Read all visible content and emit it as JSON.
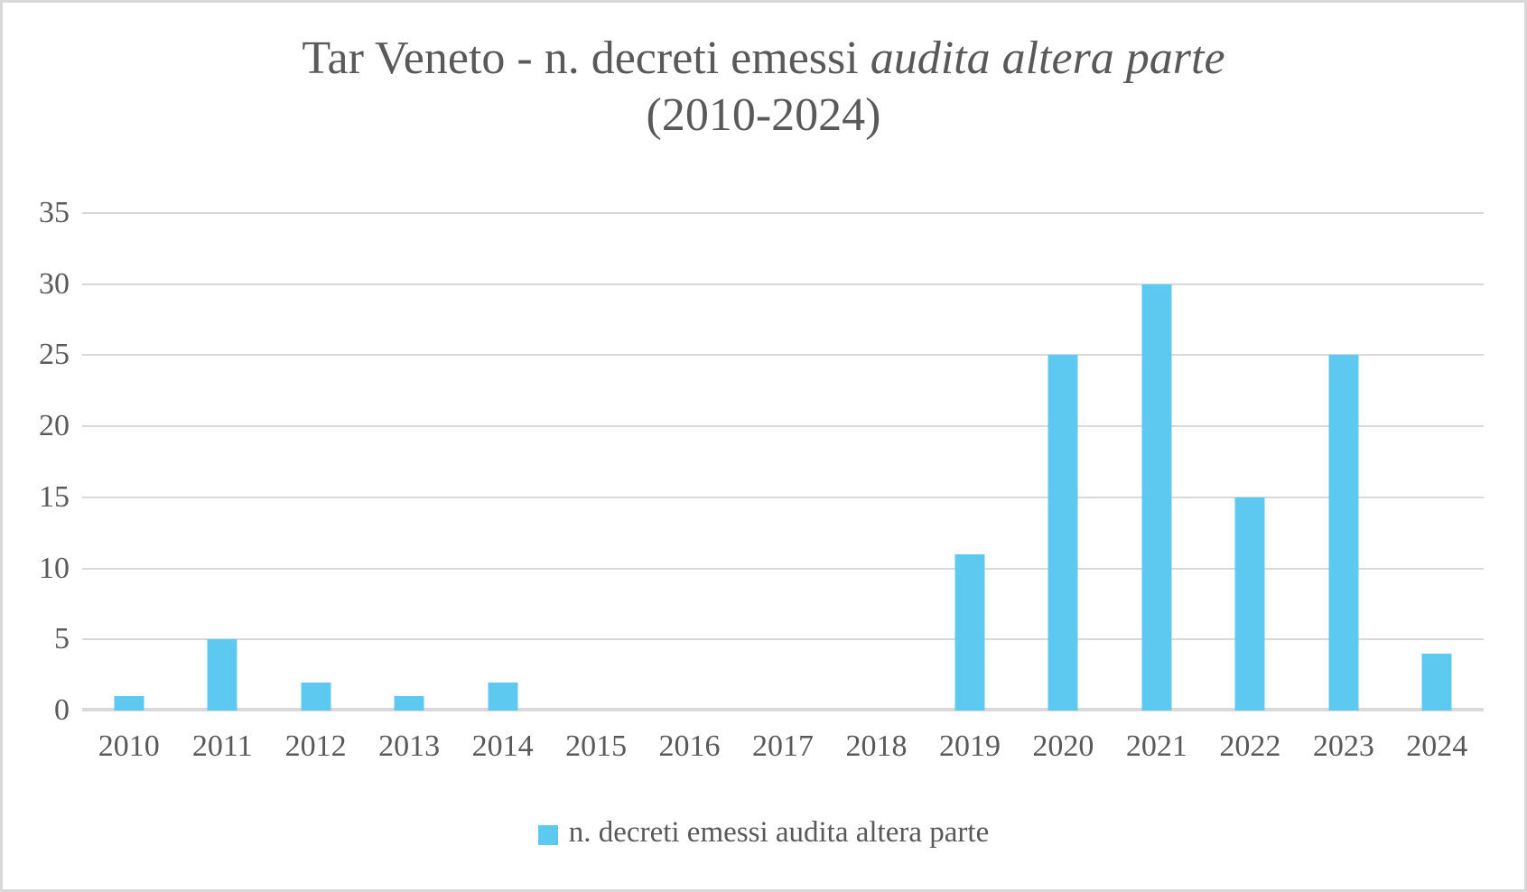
{
  "chart_data": {
    "type": "bar",
    "title_main": "Tar Veneto - n. decreti emessi ",
    "title_italic": "audita altera parte",
    "title_line2": "(2010-2024)",
    "categories": [
      "2010",
      "2011",
      "2012",
      "2013",
      "2014",
      "2015",
      "2016",
      "2017",
      "2018",
      "2019",
      "2020",
      "2021",
      "2022",
      "2023",
      "2024"
    ],
    "values": [
      1,
      5,
      2,
      1,
      2,
      0,
      0,
      0,
      0,
      11,
      25,
      30,
      15,
      25,
      4
    ],
    "series_name": "n. decreti emessi audita altera parte",
    "yticks": [
      0,
      5,
      10,
      15,
      20,
      25,
      30,
      35
    ],
    "ylim": [
      0,
      35
    ],
    "grid": true,
    "legend_position": "bottom",
    "colors": {
      "bar": "#5ec9f0",
      "gridline": "#d9d9d9",
      "text": "#595959",
      "border": "#d8d8d8",
      "background": "#ffffff"
    }
  },
  "legend": {
    "label": "n. decreti emessi audita altera parte"
  }
}
